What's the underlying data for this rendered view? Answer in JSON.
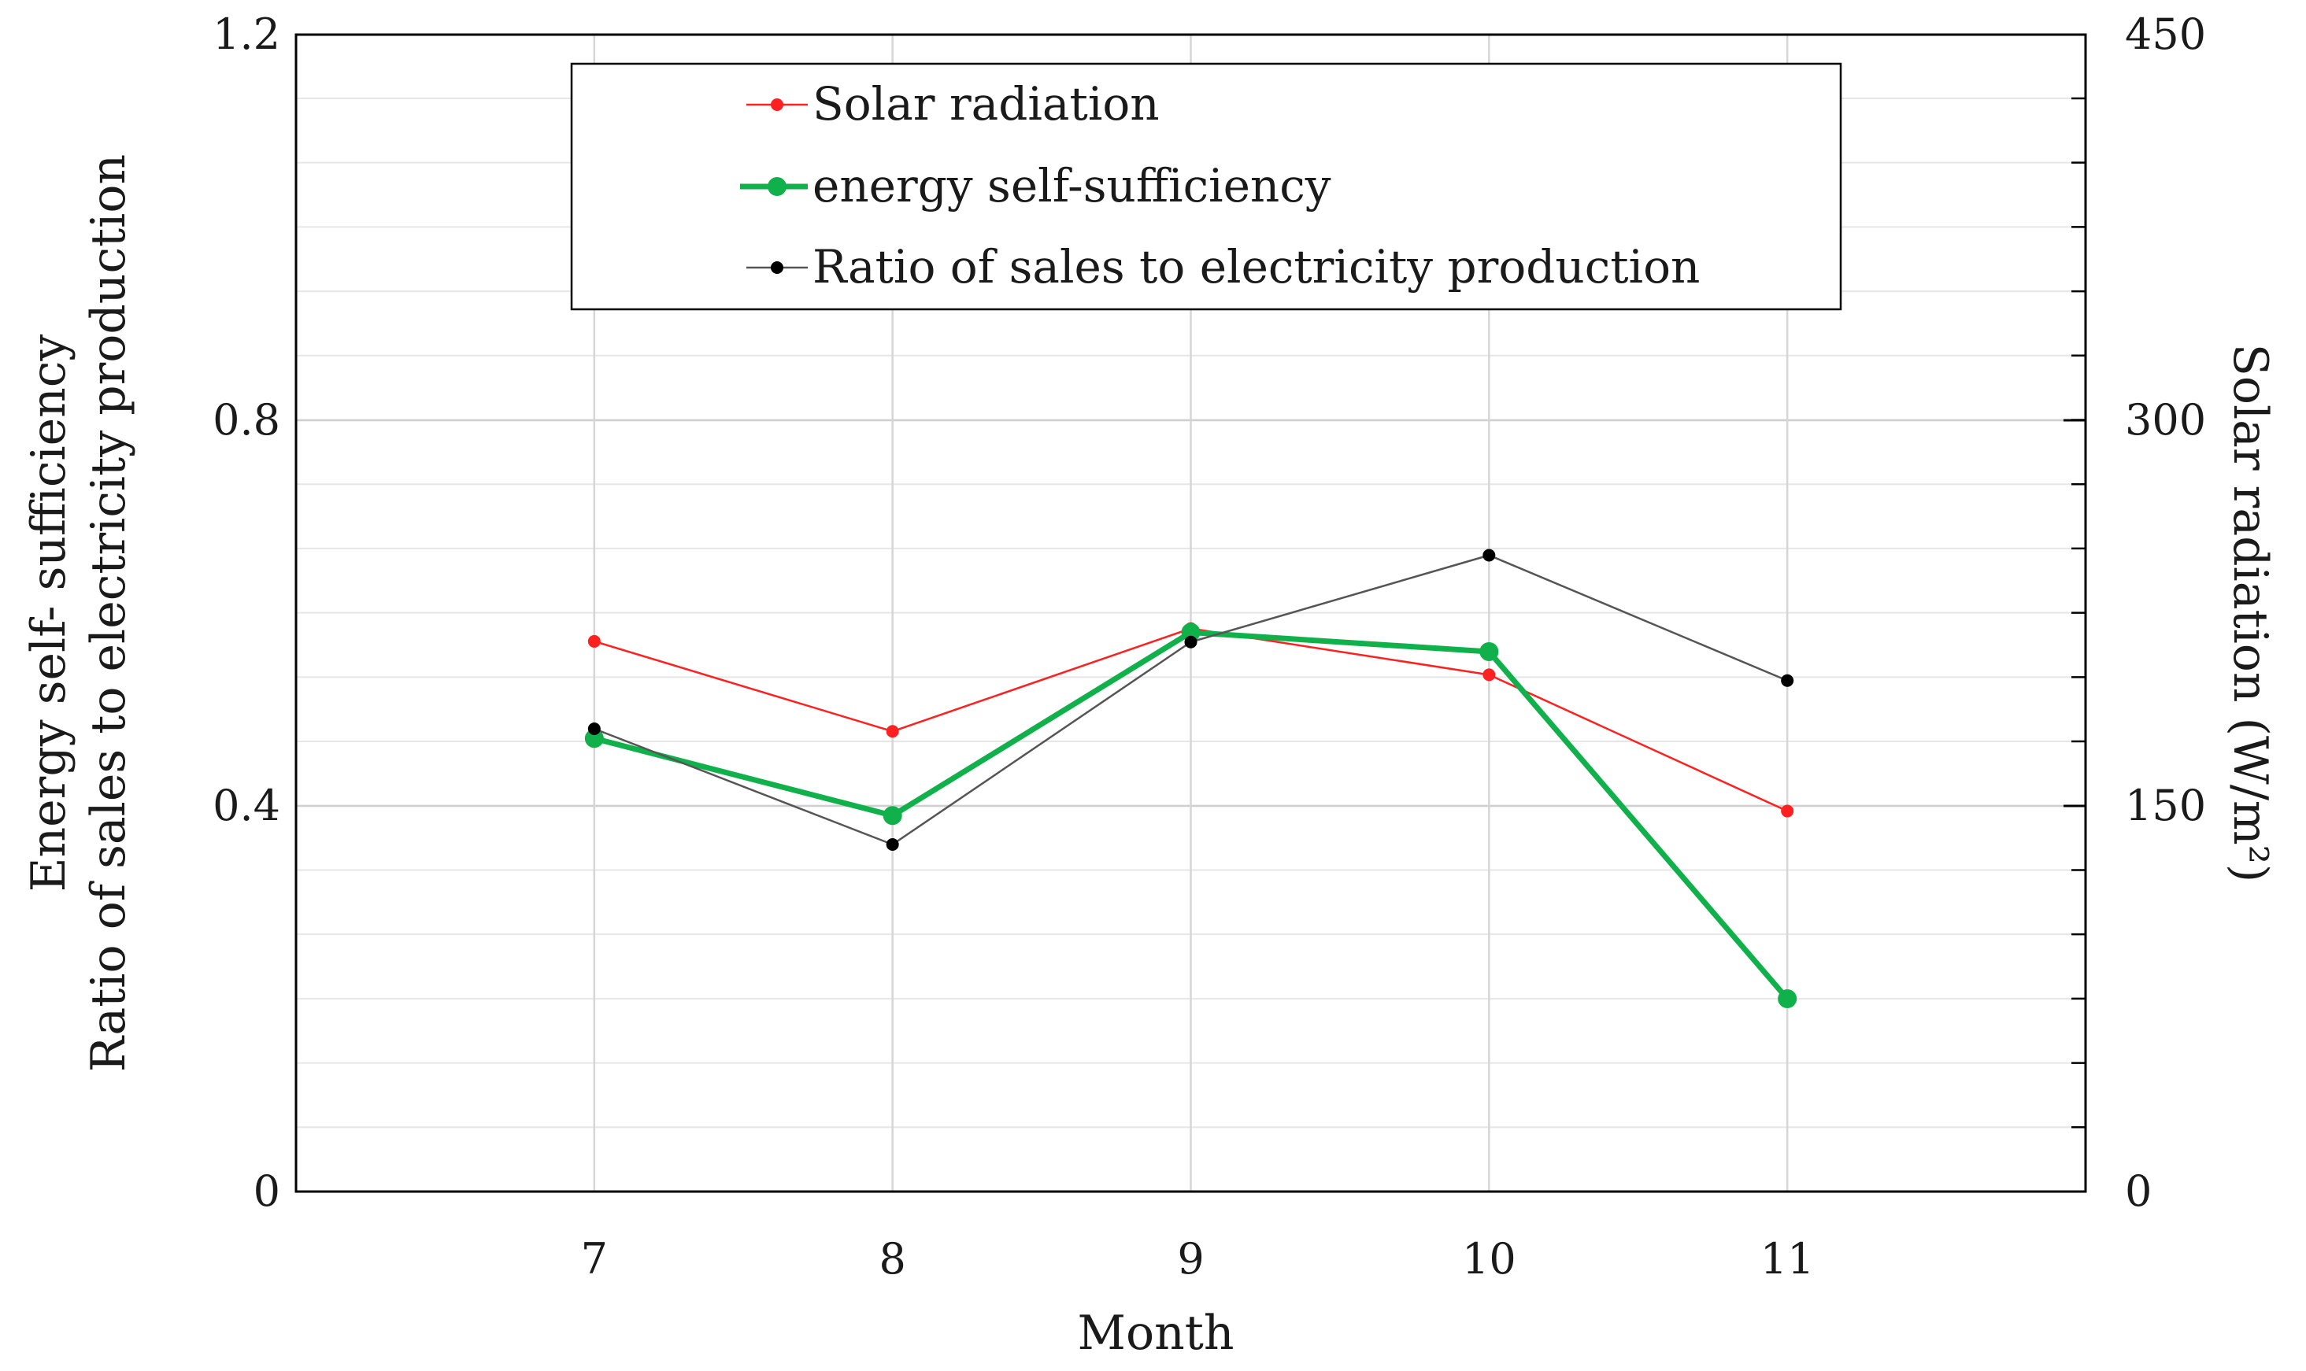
{
  "chart_data": {
    "type": "line",
    "categories": [
      "7",
      "8",
      "9",
      "10",
      "11"
    ],
    "x": [
      7,
      8,
      9,
      10,
      11
    ],
    "xlim": [
      6,
      12
    ],
    "xlabel": "Month",
    "ylabel_left_line1": "Energy self- sufficiency",
    "ylabel_left_line2": "Ratio of sales to electricity production",
    "ylabel_right": "Solar radiation (W/m²)",
    "ylim_left": [
      0,
      1.2
    ],
    "ylim_right": [
      0,
      450
    ],
    "yticks_left": [
      0,
      0.4,
      0.8,
      1.2
    ],
    "yticks_left_labels": [
      "0",
      "0.4",
      "0.8",
      "1.2"
    ],
    "yticks_right": [
      0,
      150,
      300,
      450
    ],
    "yticks_right_labels": [
      "0",
      "150",
      "300",
      "450"
    ],
    "minor_step_left": 0.0667,
    "grid": true,
    "legend_position": "top-center",
    "series": [
      {
        "name": "Solar radiation",
        "axis": "right",
        "color": "#ff2020",
        "style": "thin",
        "values": [
          214,
          179,
          219,
          201,
          148
        ]
      },
      {
        "name": "energy self-sufficiency",
        "axis": "left",
        "color": "#10b04a",
        "style": "thick",
        "values": [
          0.47,
          0.39,
          0.58,
          0.56,
          0.2
        ]
      },
      {
        "name": "Ratio of sales to electricity production",
        "axis": "left",
        "color": "#000000",
        "style": "thin",
        "values": [
          0.48,
          0.36,
          0.57,
          0.66,
          0.53
        ]
      }
    ]
  }
}
